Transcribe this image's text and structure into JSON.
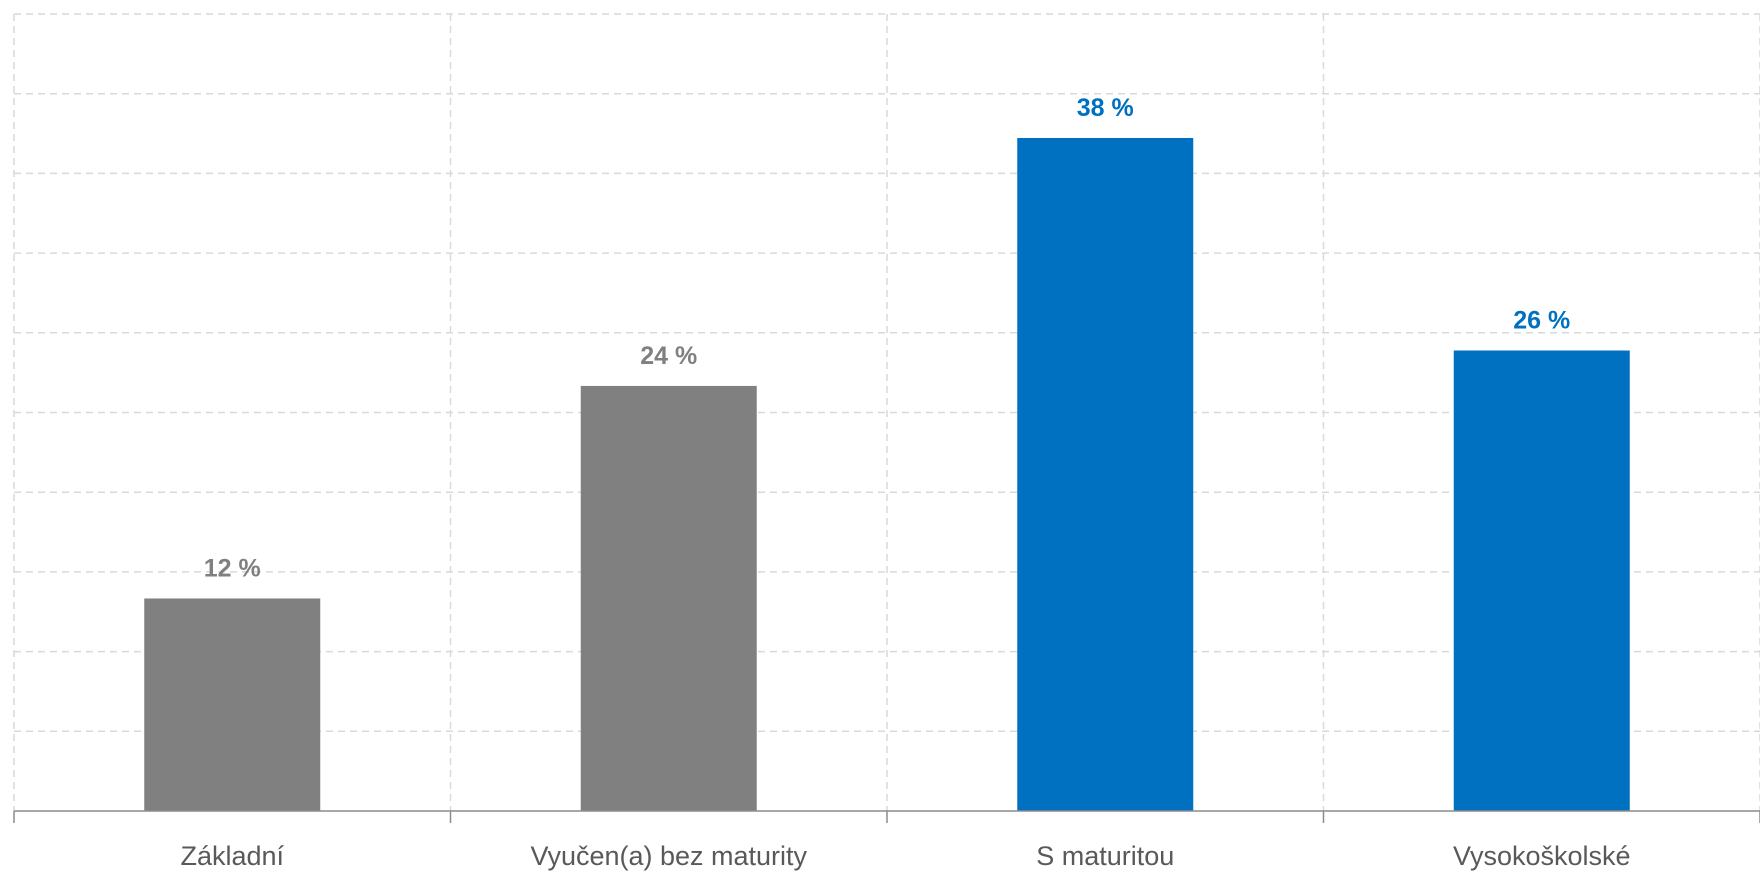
{
  "chart_data": {
    "type": "bar",
    "categories": [
      "Základní",
      "Vyučen(a) bez maturity",
      "S maturitou",
      "Vysokoškolské"
    ],
    "values": [
      12,
      24,
      38,
      26
    ],
    "data_labels": [
      "12 %",
      "24 %",
      "38 %",
      "26 %"
    ],
    "bar_colors": [
      "#808080",
      "#808080",
      "#0070C0",
      "#0070C0"
    ],
    "label_colors": [
      "#808080",
      "#808080",
      "#0070C0",
      "#0070C0"
    ],
    "ylim": [
      0,
      45
    ],
    "grid": true,
    "legend": "none",
    "title": "",
    "xlabel": "",
    "ylabel": ""
  }
}
